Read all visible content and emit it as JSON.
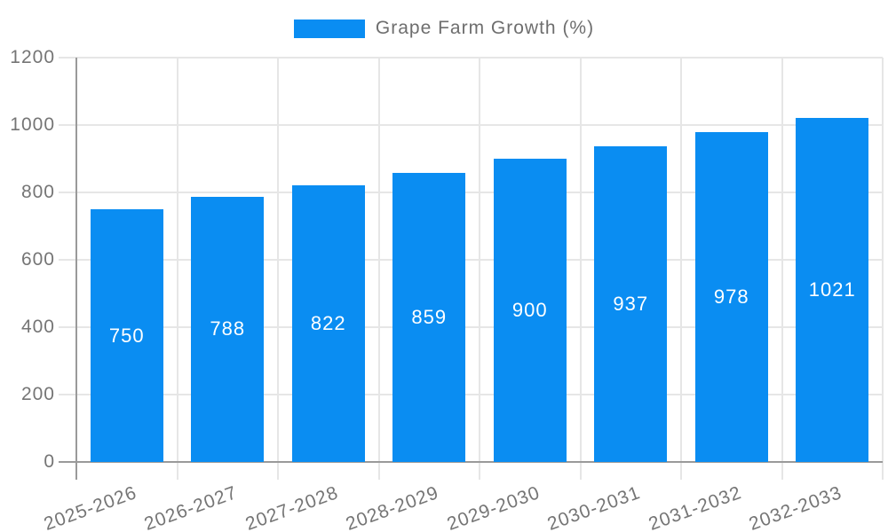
{
  "legend": {
    "label": "Grape Farm Growth (%)"
  },
  "chart_data": {
    "type": "bar",
    "title": "Grape Farm Growth (%)",
    "categories": [
      "2025-2026",
      "2026-2027",
      "2027-2028",
      "2028-2029",
      "2029-2030",
      "2030-2031",
      "2031-2032",
      "2032-2033"
    ],
    "values": [
      750,
      788,
      822,
      859,
      900,
      937,
      978,
      1021
    ],
    "bar_labels": [
      "750",
      "788",
      "822",
      "859",
      "900",
      "937",
      "978",
      "1021"
    ],
    "xlabel": "",
    "ylabel": "",
    "ylim": [
      0,
      1200
    ],
    "yticks": [
      0,
      200,
      400,
      600,
      800,
      1000,
      1200
    ],
    "grid": true,
    "legend_position": "top",
    "colors": {
      "bar": "#0A8DF2",
      "bar_value_text": "#FFFFFF",
      "axis_text": "#757575",
      "gridline": "#E6E6E6",
      "axis_line": "#9A9A9A",
      "background": "#FFFFFF"
    }
  }
}
